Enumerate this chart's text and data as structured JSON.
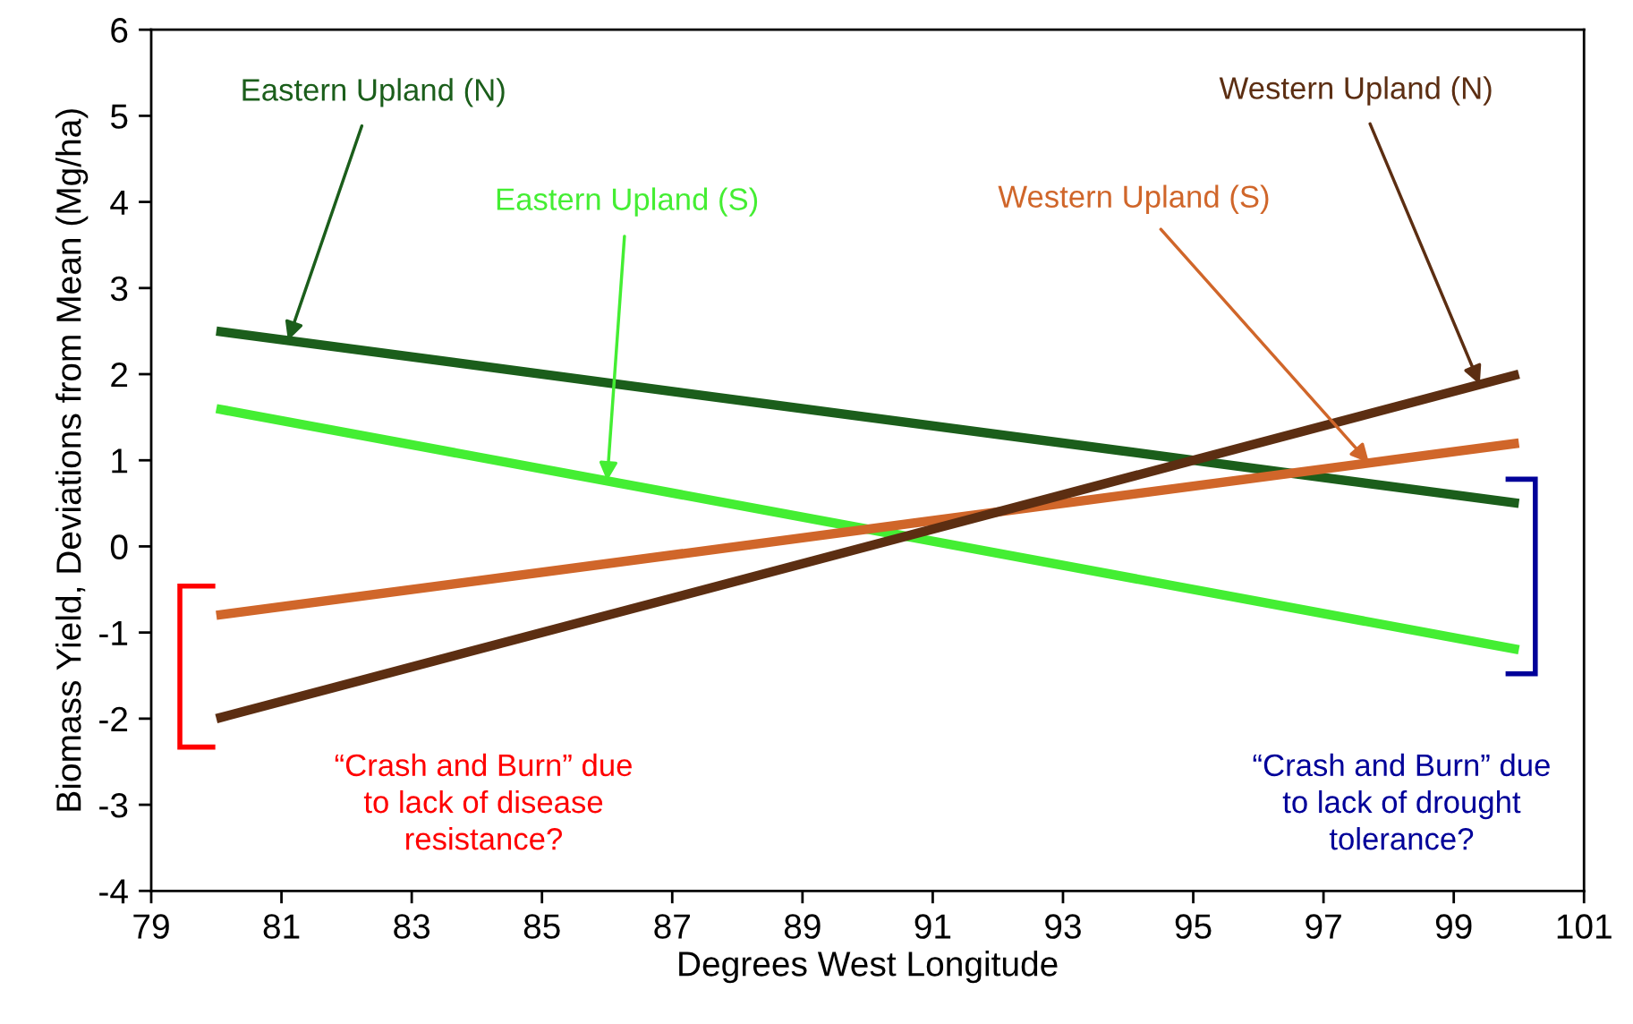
{
  "chart_data": {
    "type": "line",
    "xlabel": "Degrees West Longitude",
    "ylabel": "Biomass Yield, Deviations from Mean (Mg/ha)",
    "x": [
      80,
      100
    ],
    "series": [
      {
        "name": "Eastern Upland (N)",
        "color": "#1b5e1b",
        "values": [
          2.5,
          0.5
        ]
      },
      {
        "name": "Eastern Upland (S)",
        "color": "#44ee33",
        "values": [
          1.6,
          -1.2
        ]
      },
      {
        "name": "Western Upland (S)",
        "color": "#d0662a",
        "values": [
          -0.8,
          1.2
        ]
      },
      {
        "name": "Western Upland (N)",
        "color": "#5c2e12",
        "values": [
          -2.0,
          2.0
        ]
      }
    ],
    "xlim": [
      79,
      101
    ],
    "xticks": [
      79,
      81,
      83,
      85,
      87,
      89,
      91,
      93,
      95,
      97,
      99,
      101
    ],
    "ylim": [
      -4,
      6
    ],
    "yticks": [
      -4,
      -3,
      -2,
      -1,
      0,
      1,
      2,
      3,
      4,
      5,
      6
    ],
    "grid": false,
    "legend": false,
    "marker": "none",
    "line_style": "solid",
    "annotations": [
      "“Crash and Burn” due\nto lack of disease\nresistance?",
      "“Crash and Burn” due\nto lack of drought\ntolerance?"
    ]
  }
}
